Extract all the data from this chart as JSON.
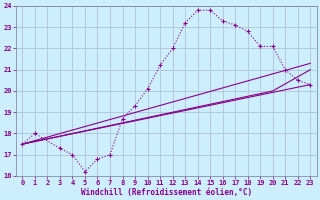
{
  "xlabel": "Windchill (Refroidissement éolien,°C)",
  "xlim": [
    -0.5,
    23.5
  ],
  "ylim": [
    16,
    24
  ],
  "xticks": [
    0,
    1,
    2,
    3,
    4,
    5,
    6,
    7,
    8,
    9,
    10,
    11,
    12,
    13,
    14,
    15,
    16,
    17,
    18,
    19,
    20,
    21,
    22,
    23
  ],
  "yticks": [
    16,
    17,
    18,
    19,
    20,
    21,
    22,
    23,
    24
  ],
  "bg_color": "#cceeff",
  "line_color": "#880088",
  "grid_color": "#aabbcc",
  "curve_main_x": [
    0,
    1,
    3,
    4,
    5,
    6,
    7,
    8,
    9,
    10,
    11,
    12,
    13,
    14,
    15,
    16,
    17,
    18,
    19,
    20,
    21,
    22,
    23
  ],
  "curve_main_y": [
    17.5,
    18.0,
    17.3,
    17.0,
    16.2,
    16.8,
    17.0,
    18.7,
    19.3,
    20.1,
    21.2,
    22.0,
    23.2,
    23.8,
    23.8,
    23.3,
    23.1,
    22.8,
    22.1,
    22.1,
    21.0,
    20.5,
    20.3
  ],
  "line1_x": [
    0,
    23
  ],
  "line1_y": [
    17.5,
    20.3
  ],
  "line2_x": [
    0,
    23
  ],
  "line2_y": [
    17.5,
    21.3
  ],
  "line3_x": [
    0,
    20,
    23
  ],
  "line3_y": [
    17.5,
    20.0,
    21.0
  ]
}
